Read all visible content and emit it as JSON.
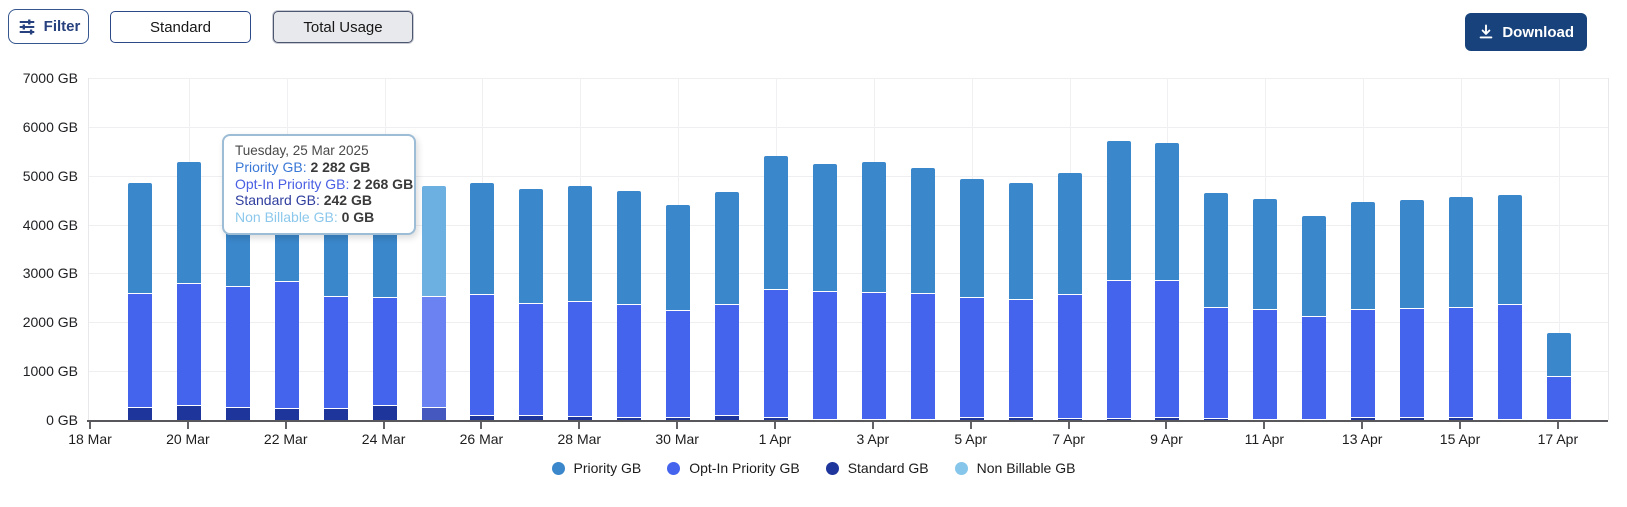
{
  "toolbar": {
    "filter_label": "Filter",
    "standard_label": "Standard",
    "total_usage_label": "Total Usage",
    "download_label": "Download",
    "selected_view": "Total Usage"
  },
  "tooltip": {
    "title": "Tuesday, 25 Mar 2025",
    "rows": [
      {
        "label": "Priority GB",
        "value": "2 282 GB",
        "color": "#3a78d6"
      },
      {
        "label": "Opt-In Priority GB",
        "value": "2 268 GB",
        "color": "#4a5fe3"
      },
      {
        "label": "Standard GB",
        "value": "242 GB",
        "color": "#2f3e9e"
      },
      {
        "label": "Non Billable GB",
        "value": "0 GB",
        "color": "#8cc8ec"
      }
    ]
  },
  "chart_data": {
    "type": "bar",
    "stacked": true,
    "unit": "GB",
    "ylim": [
      0,
      7000
    ],
    "grid": true,
    "y_ticks": [
      "7000 GB",
      "6000 GB",
      "5000 GB",
      "4000 GB",
      "3000 GB",
      "2000 GB",
      "1000 GB",
      "0 GB"
    ],
    "x_tick_labels": [
      "18 Mar",
      "20 Mar",
      "22 Mar",
      "24 Mar",
      "26 Mar",
      "28 Mar",
      "30 Mar",
      "1 Apr",
      "3 Apr",
      "5 Apr",
      "7 Apr",
      "9 Apr",
      "11 Apr",
      "13 Apr",
      "15 Apr",
      "17 Apr"
    ],
    "dates": [
      "18 Mar",
      "19 Mar",
      "20 Mar",
      "21 Mar",
      "22 Mar",
      "23 Mar",
      "24 Mar",
      "25 Mar",
      "26 Mar",
      "27 Mar",
      "28 Mar",
      "29 Mar",
      "30 Mar",
      "31 Mar",
      "1 Apr",
      "2 Apr",
      "3 Apr",
      "4 Apr",
      "5 Apr",
      "6 Apr",
      "7 Apr",
      "8 Apr",
      "9 Apr",
      "10 Apr",
      "11 Apr",
      "12 Apr",
      "13 Apr",
      "14 Apr",
      "15 Apr",
      "16 Apr",
      "17 Apr"
    ],
    "highlight_index": 7,
    "series": [
      {
        "name": "Standard GB",
        "color": "#1e359b",
        "hover_color": "#4458c0",
        "values": [
          0,
          250,
          295,
          250,
          225,
          235,
          285,
          242,
          90,
          80,
          60,
          45,
          35,
          75,
          35,
          10,
          10,
          10,
          35,
          45,
          30,
          30,
          40,
          30,
          10,
          10,
          35,
          35,
          40,
          10,
          10
        ]
      },
      {
        "name": "Opt-In Priority GB",
        "color": "#4464ee",
        "hover_color": "#6a82f2",
        "values": [
          0,
          2320,
          2490,
          2470,
          2595,
          2290,
          2210,
          2268,
          2460,
          2300,
          2355,
          2315,
          2190,
          2285,
          2630,
          2605,
          2585,
          2560,
          2465,
          2415,
          2520,
          2825,
          2810,
          2260,
          2250,
          2100,
          2220,
          2245,
          2250,
          2335,
          880
        ]
      },
      {
        "name": "Priority GB",
        "color": "#3a87cb",
        "hover_color": "#6cb0e2",
        "values": [
          0,
          2280,
          2495,
          2540,
          2530,
          2905,
          2805,
          2282,
          2305,
          2340,
          2370,
          2320,
          2185,
          2310,
          2730,
          2625,
          2685,
          2590,
          2440,
          2395,
          2505,
          2860,
          2815,
          2360,
          2255,
          2065,
          2210,
          2215,
          2270,
          2270,
          895
        ]
      },
      {
        "name": "Non Billable GB",
        "color": "#85c6ea",
        "hover_color": "#a9d9f2",
        "values": [
          0,
          0,
          0,
          0,
          0,
          0,
          0,
          0,
          0,
          0,
          0,
          0,
          0,
          0,
          0,
          0,
          0,
          0,
          0,
          0,
          0,
          0,
          0,
          0,
          0,
          0,
          0,
          0,
          0,
          0,
          0
        ]
      }
    ],
    "legend": [
      {
        "label": "Priority GB",
        "color": "#3a87cb"
      },
      {
        "label": "Opt-In Priority GB",
        "color": "#4464ee"
      },
      {
        "label": "Standard GB",
        "color": "#1e359b"
      },
      {
        "label": "Non Billable GB",
        "color": "#85c6ea"
      }
    ]
  }
}
